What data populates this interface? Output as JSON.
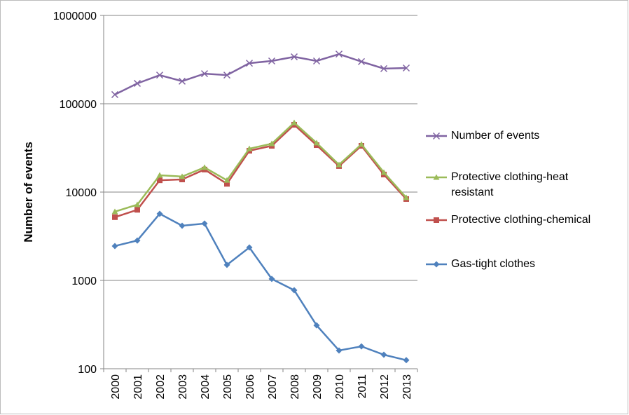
{
  "chart_data": {
    "type": "line",
    "y_label": "Number of events",
    "log_scale": true,
    "grid": true,
    "legend": "right",
    "categories": [
      "2000",
      "2001",
      "2002",
      "2003",
      "2004",
      "2005",
      "2006",
      "2007",
      "2008",
      "2009",
      "2010",
      "2011",
      "2012",
      "2013"
    ],
    "ylim": [
      100,
      1000000
    ],
    "yticks": [
      100,
      1000,
      10000,
      100000,
      1000000
    ],
    "series": [
      {
        "name": "Number of events",
        "color": "#8064a2",
        "marker": "x",
        "values": [
          127000,
          170000,
          211000,
          180000,
          219000,
          211000,
          288000,
          305000,
          340000,
          305000,
          365000,
          300000,
          250000,
          254000
        ]
      },
      {
        "name": "Protective clothing-heat resistant",
        "color": "#9bbb59",
        "marker": "triangle",
        "values": [
          6000,
          7200,
          15500,
          15000,
          19000,
          13600,
          31000,
          35300,
          61000,
          36000,
          20400,
          34700,
          16700,
          8650
        ]
      },
      {
        "name": "Protective clothing-chemical",
        "color": "#c0504d",
        "marker": "square",
        "values": [
          5200,
          6300,
          13600,
          13900,
          18000,
          12400,
          29400,
          33400,
          57800,
          34000,
          19700,
          33400,
          15800,
          8340
        ]
      },
      {
        "name": "Gas-tight clothes",
        "color": "#4f81bd",
        "marker": "diamond",
        "values": [
          2450,
          2830,
          5680,
          4160,
          4400,
          1500,
          2360,
          1040,
          775,
          310,
          161,
          179,
          144,
          125
        ]
      }
    ]
  }
}
